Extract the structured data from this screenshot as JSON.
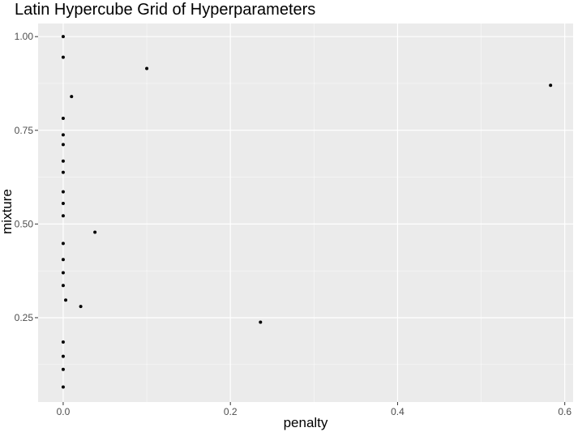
{
  "chart_data": {
    "type": "scatter",
    "title": "Latin Hypercube Grid of Hyperparameters",
    "xlabel": "penalty",
    "ylabel": "mixture",
    "xlim": [
      -0.03,
      0.61
    ],
    "ylim": [
      0.025,
      1.035
    ],
    "x_ticks": [
      0.0,
      0.2,
      0.4,
      0.6
    ],
    "x_tick_labels": [
      "0.0",
      "0.2",
      "0.4",
      "0.6"
    ],
    "y_ticks": [
      0.25,
      0.5,
      0.75,
      1.0
    ],
    "y_tick_labels": [
      "0.25",
      "0.50",
      "0.75",
      "1.00"
    ],
    "grid": true,
    "legend": "none",
    "colors": {
      "panel": "#ebebeb",
      "grid_major": "#ffffff",
      "point": "#000000",
      "tick_label": "#4d4d4d"
    },
    "points": [
      {
        "x": 0.0,
        "y": 1.0
      },
      {
        "x": 0.0,
        "y": 0.945
      },
      {
        "x": 0.1,
        "y": 0.915
      },
      {
        "x": 0.583,
        "y": 0.87
      },
      {
        "x": 0.01,
        "y": 0.84
      },
      {
        "x": 0.0,
        "y": 0.782
      },
      {
        "x": 0.0,
        "y": 0.738
      },
      {
        "x": 0.0,
        "y": 0.712
      },
      {
        "x": 0.0,
        "y": 0.668
      },
      {
        "x": 0.0,
        "y": 0.638
      },
      {
        "x": 0.0,
        "y": 0.586
      },
      {
        "x": 0.0,
        "y": 0.555
      },
      {
        "x": 0.0,
        "y": 0.522
      },
      {
        "x": 0.038,
        "y": 0.478
      },
      {
        "x": 0.0,
        "y": 0.448
      },
      {
        "x": 0.0,
        "y": 0.405
      },
      {
        "x": 0.0,
        "y": 0.37
      },
      {
        "x": 0.0,
        "y": 0.336
      },
      {
        "x": 0.003,
        "y": 0.297
      },
      {
        "x": 0.021,
        "y": 0.28
      },
      {
        "x": 0.236,
        "y": 0.238
      },
      {
        "x": 0.0,
        "y": 0.185
      },
      {
        "x": 0.0,
        "y": 0.147
      },
      {
        "x": 0.0,
        "y": 0.112
      },
      {
        "x": 0.0,
        "y": 0.065
      }
    ]
  }
}
